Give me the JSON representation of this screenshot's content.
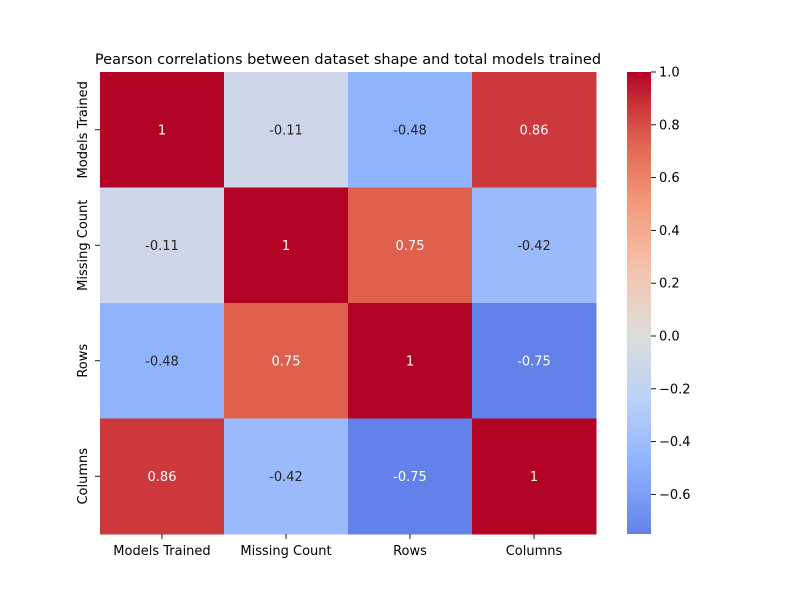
{
  "chart_data": {
    "type": "heatmap",
    "title": "Pearson correlations between dataset shape and total models trained",
    "xlabel": "",
    "ylabel": "",
    "x_categories": [
      "Models Trained",
      "Missing Count",
      "Rows",
      "Columns"
    ],
    "y_categories": [
      "Models Trained",
      "Missing Count",
      "Rows",
      "Columns"
    ],
    "values": [
      [
        1,
        -0.11,
        -0.48,
        0.86
      ],
      [
        -0.11,
        1,
        0.75,
        -0.42
      ],
      [
        -0.48,
        0.75,
        1,
        -0.75
      ],
      [
        0.86,
        -0.42,
        -0.75,
        1
      ]
    ],
    "cell_labels": [
      [
        "1",
        "-0.11",
        "-0.48",
        "0.86"
      ],
      [
        "-0.11",
        "1",
        "0.75",
        "-0.42"
      ],
      [
        "-0.48",
        "0.75",
        "1",
        "-0.75"
      ],
      [
        "0.86",
        "-0.42",
        "-0.75",
        "1"
      ]
    ],
    "colormap": "coolwarm",
    "vmin": -0.75,
    "vmax": 1.0,
    "colorbar": {
      "ticks": [
        -0.6,
        -0.4,
        -0.2,
        0.0,
        0.2,
        0.4,
        0.6,
        0.8,
        1.0
      ],
      "tick_labels": [
        "−0.6",
        "−0.4",
        "−0.2",
        "0.0",
        "0.2",
        "0.4",
        "0.6",
        "0.8",
        "1.0"
      ]
    },
    "grid": false
  }
}
